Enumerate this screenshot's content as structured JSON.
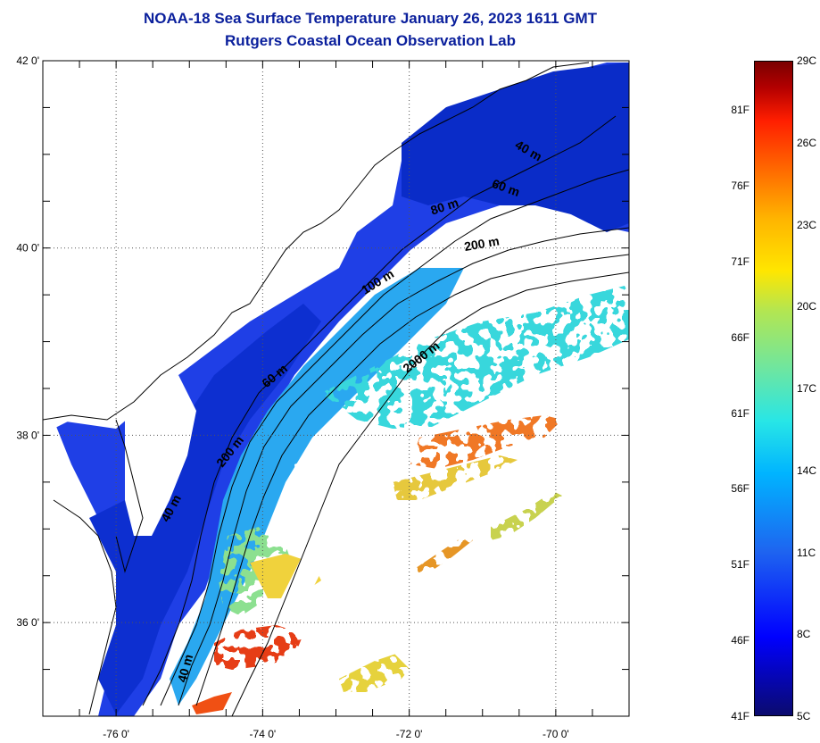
{
  "title": {
    "line1": "NOAA-18 Sea Surface Temperature January 26, 2023 1611 GMT",
    "line2": "Rutgers Coastal Ocean Observation Lab"
  },
  "map": {
    "lat_labels": [
      {
        "lat": 42,
        "label": "42 0'"
      },
      {
        "lat": 40,
        "label": "40 0'"
      },
      {
        "lat": 38,
        "label": "38 0'"
      },
      {
        "lat": 36,
        "label": "36 0'"
      }
    ],
    "lon_labels": [
      {
        "lon": -76,
        "label": "-76 0'"
      },
      {
        "lon": -74,
        "label": "-74 0'"
      },
      {
        "lon": -72,
        "label": "-72 0'"
      },
      {
        "lon": -70,
        "label": "-70 0'"
      }
    ],
    "lon_range": [
      -77.0,
      -69.0
    ],
    "lat_range": [
      35.0,
      42.0
    ],
    "grid": "dotted",
    "contour_labels": [
      {
        "text": "40 m",
        "lon": -75.2,
        "lat": 37.2,
        "angle": -62
      },
      {
        "text": "200 m",
        "lon": -74.4,
        "lat": 37.8,
        "angle": -52
      },
      {
        "text": "60 m",
        "lon": -73.8,
        "lat": 38.6,
        "angle": -40
      },
      {
        "text": "2000 m",
        "lon": -71.8,
        "lat": 38.8,
        "angle": -38
      },
      {
        "text": "100 m",
        "lon": -72.4,
        "lat": 39.6,
        "angle": -32
      },
      {
        "text": "200 m",
        "lon": -71.0,
        "lat": 40.0,
        "angle": -10
      },
      {
        "text": "80 m",
        "lon": -71.5,
        "lat": 40.4,
        "angle": -18
      },
      {
        "text": "60 m",
        "lon": -70.7,
        "lat": 40.6,
        "angle": 20
      },
      {
        "text": "40 m",
        "lon": -70.4,
        "lat": 41.0,
        "angle": 30
      },
      {
        "text": "40 m",
        "lon": -75.0,
        "lat": 35.5,
        "angle": -75
      }
    ]
  },
  "colorbar": {
    "fahrenheit_labels": [
      "81F",
      "76F",
      "71F",
      "66F",
      "61F",
      "56F",
      "51F",
      "46F",
      "41F"
    ],
    "celsius_labels": [
      "29C",
      "26C",
      "23C",
      "20C",
      "17C",
      "14C",
      "11C",
      "8C",
      "5C"
    ],
    "range_c": [
      5,
      29
    ]
  }
}
